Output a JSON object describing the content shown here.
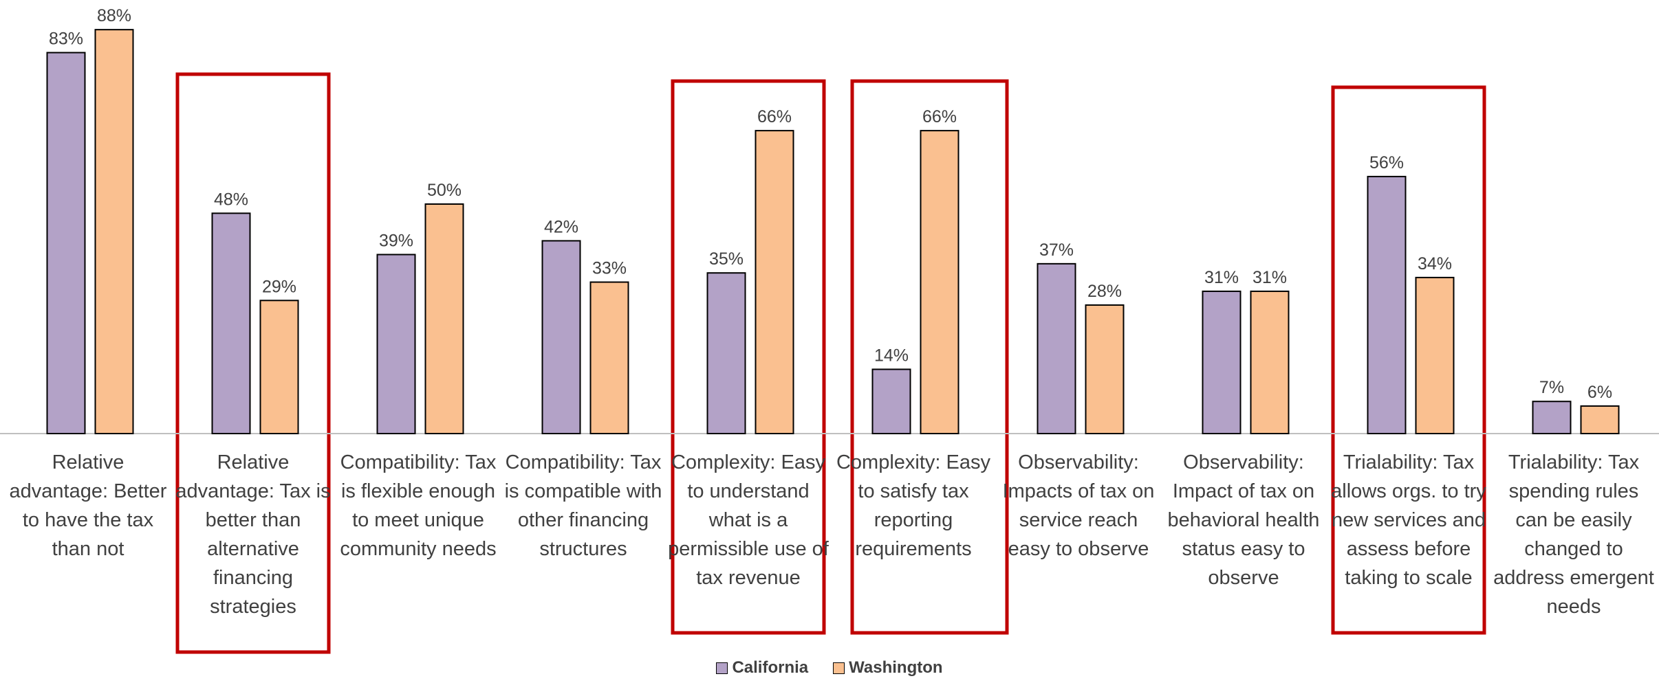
{
  "chart_data": {
    "type": "bar",
    "categories": [
      "Relative advantage: Better to have the tax than not",
      "Relative advantage: Tax is better than alternative financing strategies",
      "Compatibility: Tax is flexible enough to meet unique community needs",
      "Compatibility: Tax is compatible with other financing structures",
      "Complexity: Easy to understand what is a permissible use of tax revenue",
      "Complexity: Easy to satisfy tax reporting requirements",
      "Observability: Impacts of tax on service reach easy to observe",
      "Observability: Impact of tax on behavioral health status easy to observe",
      "Trialability: Tax allows orgs. to try new services and assess before taking to scale",
      "Trialability: Tax spending rules can be easily changed to address emergent needs"
    ],
    "series": [
      {
        "name": "California",
        "color": "#b3a2c7",
        "values": [
          83,
          48,
          39,
          42,
          35,
          14,
          37,
          31,
          56,
          7
        ],
        "value_labels": [
          "83%",
          "48%",
          "39%",
          "42%",
          "35%",
          "14%",
          "37%",
          "31%",
          "56%",
          "7%"
        ]
      },
      {
        "name": "Washington",
        "color": "#fac090",
        "values": [
          88,
          29,
          50,
          33,
          66,
          66,
          28,
          31,
          34,
          6
        ],
        "value_labels": [
          "88%",
          "29%",
          "50%",
          "33%",
          "66%",
          "66%",
          "28%",
          "31%",
          "34%",
          "6%"
        ]
      }
    ],
    "ylim": [
      0,
      100
    ]
  }
}
